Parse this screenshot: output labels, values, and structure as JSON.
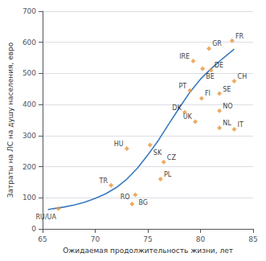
{
  "chart_data": {
    "type": "scatter",
    "xlabel": "Ожидаемая продолжительность жизни, лет",
    "ylabel": "Затраты на ЛС на душу населения, евро",
    "xlim": [
      65,
      85
    ],
    "xticks": [
      65,
      70,
      75,
      80,
      85
    ],
    "ylim": [
      0,
      700
    ],
    "yticks": [
      0,
      100,
      200,
      300,
      400,
      500,
      600,
      700
    ],
    "grid": "y",
    "series": [
      {
        "type": "line",
        "color": "#3a7abf",
        "line_style": "solid",
        "x": [
          65.5,
          66.0,
          67.0,
          68.0,
          69.0,
          70.0,
          71.0,
          72.0,
          73.0,
          74.0,
          75.0,
          76.0,
          77.0,
          78.0,
          79.0,
          80.0,
          81.0,
          82.0,
          83.2
        ],
        "values": [
          62,
          65,
          70,
          77,
          86,
          98,
          113,
          133,
          160,
          195,
          238,
          285,
          338,
          390,
          440,
          482,
          515,
          545,
          578
        ]
      },
      {
        "type": "scatter",
        "color": "#e8963c",
        "marker": "diamond",
        "x": [
          66.5,
          71.5,
          73.5,
          73.8,
          73.0,
          75.2,
          76.5,
          76.2,
          79.0,
          78.5,
          79.5,
          80.1,
          80.2,
          79.3,
          80.8,
          81.0,
          81.8,
          81.8,
          81.8,
          83.2,
          83.2,
          83.0
        ],
        "values": [
          65,
          140,
          80,
          110,
          258,
          270,
          215,
          160,
          445,
          375,
          345,
          420,
          515,
          540,
          580,
          510,
          435,
          380,
          325,
          320,
          475,
          605
        ],
        "annotations": [
          "RU/UA",
          "TR",
          "RO",
          "BG",
          "HU",
          "SK",
          "CZ",
          "PL",
          "PT",
          "DK",
          "UK",
          "FI",
          "BE",
          "IRE",
          "GR",
          "DE",
          "SE",
          "NO",
          "NL",
          "IT",
          "CH",
          "FR"
        ]
      }
    ]
  }
}
